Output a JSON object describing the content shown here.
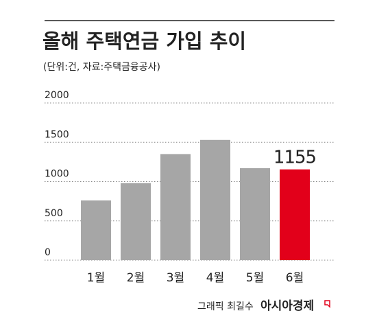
{
  "chart_data": {
    "type": "bar",
    "title": "올해 주택연금 가입 추이",
    "subtitle": "(단위:건, 자료:주택금융공사)",
    "categories": [
      "1월",
      "2월",
      "3월",
      "4월",
      "5월",
      "6월"
    ],
    "values": [
      760,
      980,
      1350,
      1530,
      1170,
      1155
    ],
    "colors": [
      "#a6a6a6",
      "#a6a6a6",
      "#a6a6a6",
      "#a6a6a6",
      "#a6a6a6",
      "#e2001a"
    ],
    "ylim": [
      0,
      2000
    ],
    "yticks": [
      0,
      500,
      1000,
      1500,
      2000
    ],
    "grid": true,
    "credit": "그래픽 최길수",
    "logo": "아시아경제"
  }
}
